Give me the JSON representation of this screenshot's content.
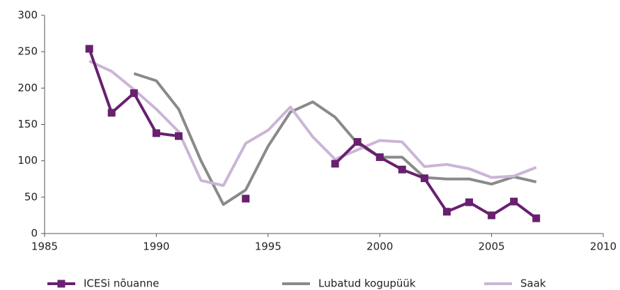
{
  "chart_data": {
    "type": "line",
    "x": [
      1987,
      1988,
      1989,
      1990,
      1991,
      1992,
      1993,
      1994,
      1995,
      1996,
      1997,
      1998,
      1999,
      2000,
      2001,
      2002,
      2003,
      2004,
      2005,
      2006,
      2007
    ],
    "series": [
      {
        "name": "ICESi nõuanne",
        "color": "#68206f",
        "markers": true,
        "values": [
          254,
          166,
          193,
          138,
          134,
          null,
          null,
          48,
          null,
          null,
          null,
          96,
          126,
          105,
          88,
          76,
          30,
          43,
          25,
          44,
          21
        ]
      },
      {
        "name": "Lubatud kogupüük",
        "color": "#8a8a8a",
        "markers": false,
        "values": [
          null,
          null,
          220,
          210,
          171,
          100,
          40,
          60,
          120,
          167,
          181,
          160,
          124,
          105,
          105,
          77,
          75,
          75,
          68,
          78,
          71
        ]
      },
      {
        "name": "Saak",
        "color": "#cbb5d6",
        "markers": false,
        "values": [
          237,
          223,
          198,
          171,
          140,
          73,
          66,
          124,
          142,
          174,
          133,
          102,
          115,
          128,
          126,
          92,
          95,
          89,
          77,
          79,
          91
        ]
      }
    ],
    "xlim": [
      1985,
      2010
    ],
    "xticks": [
      1985,
      1990,
      1995,
      2000,
      2005,
      2010
    ],
    "ylim": [
      0,
      300
    ],
    "yticks": [
      0,
      50,
      100,
      150,
      200,
      250,
      300
    ],
    "legend": "bottom"
  }
}
